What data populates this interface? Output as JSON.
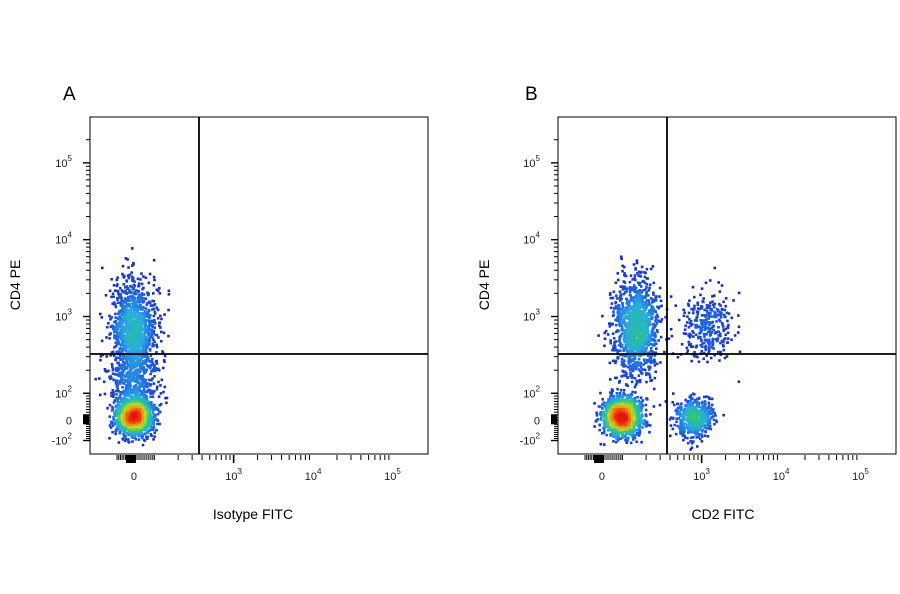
{
  "chart_data": [
    {
      "type": "scatter",
      "panel_label": "A",
      "xlabel": "Isotype FITC",
      "ylabel": "CD4 PE",
      "x_scale": "biexponential",
      "y_scale": "biexponential",
      "x_ticks": [
        "0",
        "10^3",
        "10^4",
        "10^5"
      ],
      "y_ticks": [
        "-10^2",
        "0",
        "10^2",
        "10^3",
        "10^4",
        "10^5"
      ],
      "quadrant_gate": {
        "x": 400,
        "y": 230
      },
      "series": [
        {
          "values": [
            {
              "x": 0,
              "y": 700,
              "count": 1200,
              "spread": "high"
            },
            {
              "x": 0,
              "y": 15,
              "count": 1500,
              "spread": "low"
            },
            {
              "x": 0,
              "y": 150,
              "count": 400,
              "spread": "mid"
            }
          ]
        }
      ],
      "grid": false
    },
    {
      "type": "scatter",
      "panel_label": "B",
      "xlabel": "CD2 FITC",
      "ylabel": "CD4 PE",
      "x_scale": "biexponential",
      "y_scale": "biexponential",
      "x_ticks": [
        "0",
        "10^3",
        "10^4",
        "10^5"
      ],
      "y_ticks": [
        "-10^2",
        "0",
        "10^2",
        "10^3",
        "10^4",
        "10^5"
      ],
      "quadrant_gate": {
        "x": 400,
        "y": 230
      },
      "series": [
        {
          "values": [
            {
              "x": 150,
              "y": 700,
              "count": 1200,
              "spread": "high"
            },
            {
              "x": 100,
              "y": 15,
              "count": 1400,
              "spread": "low"
            },
            {
              "x": 800,
              "y": 10,
              "count": 500,
              "spread": "low"
            },
            {
              "x": 1200,
              "y": 700,
              "count": 300,
              "spread": "mid"
            }
          ]
        }
      ],
      "grid": false
    }
  ],
  "colors": {
    "density_low": "#1a1aa8",
    "density_mid": "#28c878",
    "density_high": "#e81010",
    "axis": "#000000",
    "text": "#222222"
  }
}
